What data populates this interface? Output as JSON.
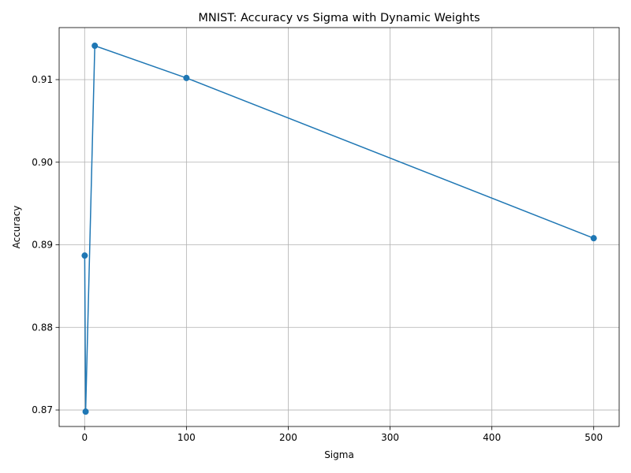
{
  "chart_data": {
    "type": "line",
    "title": "MNIST: Accuracy vs Sigma with Dynamic Weights",
    "xlabel": "Sigma",
    "ylabel": "Accuracy",
    "xlim": [
      -25,
      525
    ],
    "ylim": [
      0.868,
      0.9163
    ],
    "xticks": [
      0,
      100,
      200,
      300,
      400,
      500
    ],
    "xtick_labels": [
      "0",
      "100",
      "200",
      "300",
      "400",
      "500"
    ],
    "yticks": [
      0.87,
      0.88,
      0.89,
      0.9,
      0.91
    ],
    "ytick_labels": [
      "0.87",
      "0.88",
      "0.89",
      "0.90",
      "0.91"
    ],
    "grid": true,
    "series": [
      {
        "color": "#1f77b4",
        "marker": "circle",
        "x": [
          0.1,
          1,
          10,
          100,
          500
        ],
        "y": [
          0.8887,
          0.8698,
          0.9141,
          0.9102,
          0.8908
        ]
      }
    ]
  }
}
